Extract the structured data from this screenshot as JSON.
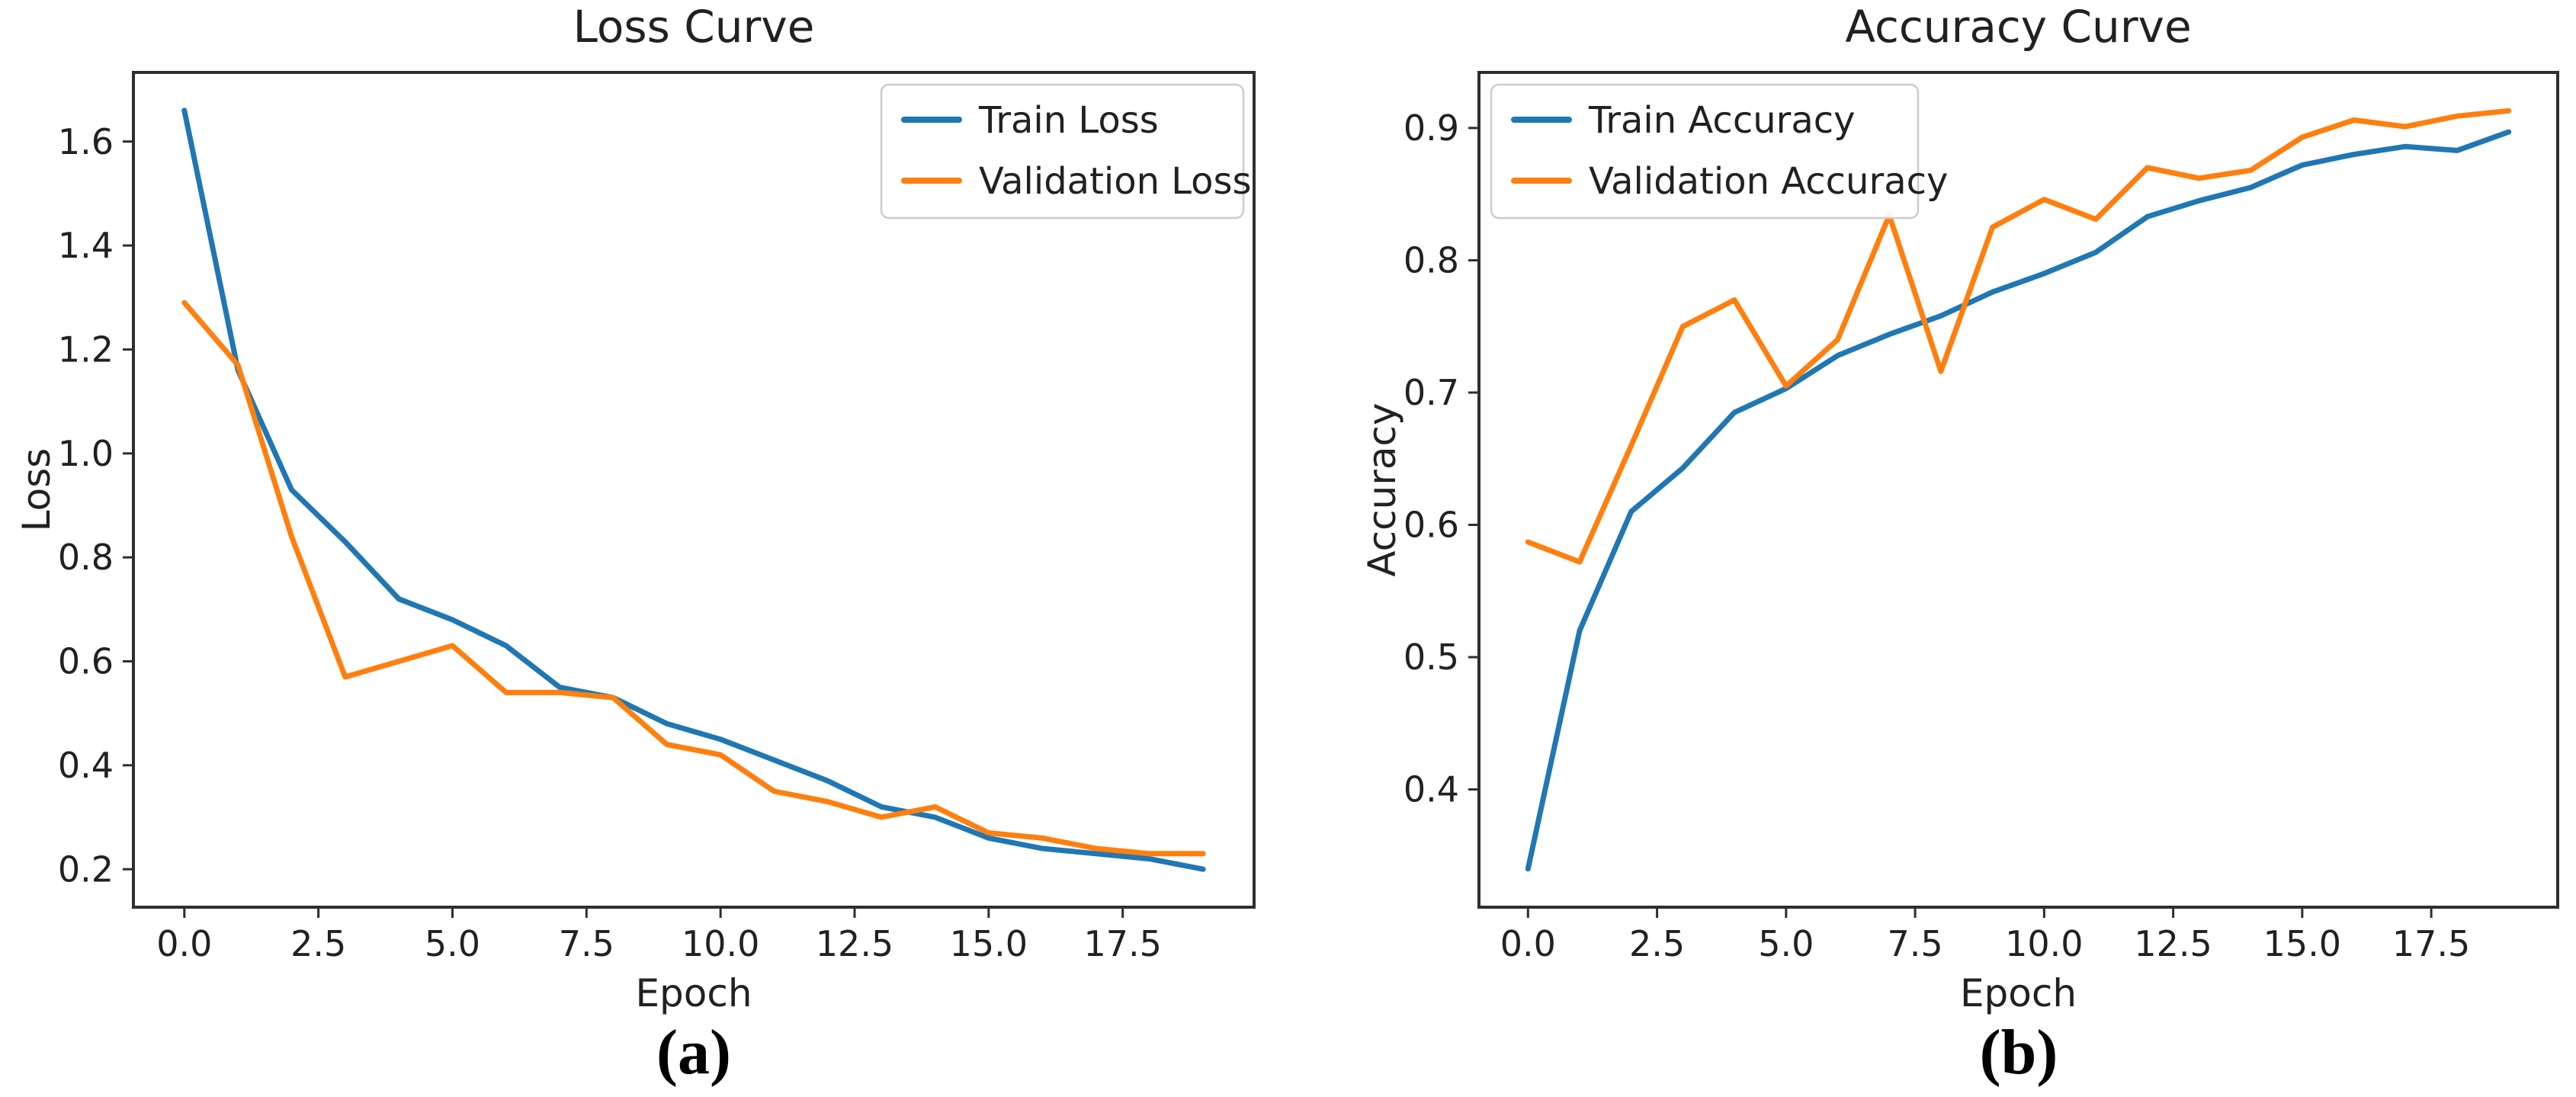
{
  "page": {
    "background": "#ffffff",
    "caption_a": "(a)",
    "caption_b": "(b)"
  },
  "colors": {
    "train_line": "#1f77b4",
    "validation_line": "#ff7f0e",
    "text": "#212121",
    "spine": "#2e2e2e",
    "legend_border": "#cccccc",
    "legend_fill": "#ffffff"
  },
  "chart_data": [
    {
      "type": "line",
      "title": "Loss Curve",
      "xlabel": "Epoch",
      "ylabel": "Loss",
      "grid": false,
      "legend_position": "upper right",
      "xlim": [
        -0.95,
        19.95
      ],
      "ylim": [
        0.127,
        1.733
      ],
      "x_ticks": [
        0,
        2.5,
        5,
        7.5,
        10,
        12.5,
        15,
        17.5
      ],
      "x_tick_labels": [
        "0.0",
        "2.5",
        "5.0",
        "7.5",
        "10.0",
        "12.5",
        "15.0",
        "17.5"
      ],
      "y_ticks": [
        0.2,
        0.4,
        0.6,
        0.8,
        1.0,
        1.2,
        1.4,
        1.6
      ],
      "y_tick_labels": [
        "0.2",
        "0.4",
        "0.6",
        "0.8",
        "1.0",
        "1.2",
        "1.4",
        "1.6"
      ],
      "x": [
        0,
        1,
        2,
        3,
        4,
        5,
        6,
        7,
        8,
        9,
        10,
        11,
        12,
        13,
        14,
        15,
        16,
        17,
        18,
        19
      ],
      "series": [
        {
          "name": "Train Loss",
          "color_key": "train_line",
          "values": [
            1.66,
            1.16,
            0.93,
            0.83,
            0.72,
            0.68,
            0.63,
            0.55,
            0.53,
            0.48,
            0.45,
            0.41,
            0.37,
            0.32,
            0.3,
            0.26,
            0.24,
            0.23,
            0.22,
            0.2
          ]
        },
        {
          "name": "Validation Loss",
          "color_key": "validation_line",
          "values": [
            1.29,
            1.17,
            0.84,
            0.57,
            0.6,
            0.63,
            0.54,
            0.54,
            0.53,
            0.44,
            0.42,
            0.35,
            0.33,
            0.3,
            0.32,
            0.27,
            0.26,
            0.24,
            0.23,
            0.23
          ]
        }
      ]
    },
    {
      "type": "line",
      "title": "Accuracy Curve",
      "xlabel": "Epoch",
      "ylabel": "Accuracy",
      "grid": false,
      "legend_position": "upper left",
      "xlim": [
        -0.95,
        19.95
      ],
      "ylim": [
        0.311,
        0.942
      ],
      "x_ticks": [
        0,
        2.5,
        5,
        7.5,
        10,
        12.5,
        15,
        17.5
      ],
      "x_tick_labels": [
        "0.0",
        "2.5",
        "5.0",
        "7.5",
        "10.0",
        "12.5",
        "15.0",
        "17.5"
      ],
      "y_ticks": [
        0.4,
        0.5,
        0.6,
        0.7,
        0.8,
        0.9
      ],
      "y_tick_labels": [
        "0.4",
        "0.5",
        "0.6",
        "0.7",
        "0.8",
        "0.9"
      ],
      "x": [
        0,
        1,
        2,
        3,
        4,
        5,
        6,
        7,
        8,
        9,
        10,
        11,
        12,
        13,
        14,
        15,
        16,
        17,
        18,
        19
      ],
      "series": [
        {
          "name": "Train Accuracy",
          "color_key": "train_line",
          "values": [
            0.34,
            0.52,
            0.61,
            0.643,
            0.685,
            0.703,
            0.728,
            0.744,
            0.758,
            0.776,
            0.79,
            0.806,
            0.833,
            0.845,
            0.855,
            0.872,
            0.88,
            0.886,
            0.883,
            0.897
          ]
        },
        {
          "name": "Validation Accuracy",
          "color_key": "validation_line",
          "values": [
            0.587,
            0.572,
            0.66,
            0.75,
            0.77,
            0.705,
            0.74,
            0.834,
            0.716,
            0.825,
            0.846,
            0.831,
            0.87,
            0.862,
            0.868,
            0.893,
            0.906,
            0.901,
            0.909,
            0.913
          ]
        }
      ]
    }
  ]
}
